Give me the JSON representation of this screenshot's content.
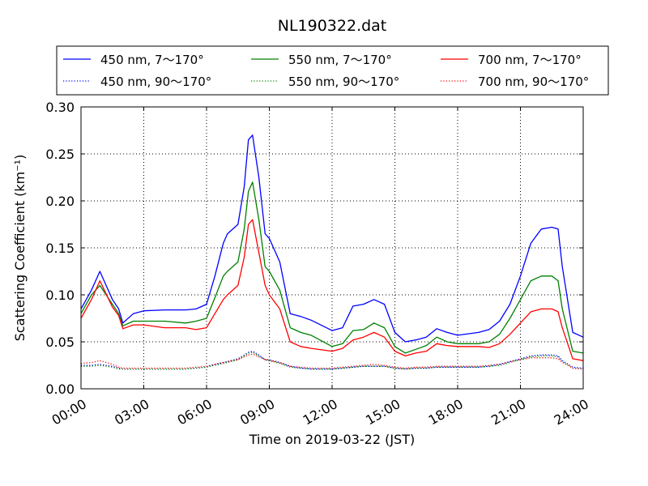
{
  "chart_data": {
    "type": "line",
    "title": "NL190322.dat",
    "xlabel": "Time on 2019-03-22 (JST)",
    "ylabel": "Scattering Coefficient (km⁻¹)",
    "xlim": [
      0,
      24
    ],
    "ylim": [
      0,
      0.3
    ],
    "grid": true,
    "legend_position": "top",
    "x_ticks": [
      0,
      3,
      6,
      9,
      12,
      15,
      18,
      21,
      24
    ],
    "x_tick_labels": [
      "00:00",
      "03:00",
      "06:00",
      "09:00",
      "12:00",
      "15:00",
      "18:00",
      "21:00",
      "24:00"
    ],
    "y_ticks": [
      0,
      0.05,
      0.1,
      0.15,
      0.2,
      0.25,
      0.3
    ],
    "y_tick_labels": [
      "0.00",
      "0.05",
      "0.10",
      "0.15",
      "0.20",
      "0.25",
      "0.30"
    ],
    "x": [
      0,
      0.5,
      0.9,
      1.5,
      1.8,
      2.0,
      2.5,
      3.0,
      4.0,
      5.0,
      5.5,
      6.0,
      6.4,
      6.8,
      7.0,
      7.5,
      7.8,
      8.0,
      8.2,
      8.5,
      8.8,
      9.0,
      9.5,
      10.0,
      10.5,
      11.0,
      12.0,
      12.5,
      13.0,
      13.5,
      14.0,
      14.5,
      15.0,
      15.5,
      16.0,
      16.5,
      17.0,
      17.5,
      18.0,
      19.0,
      19.5,
      20.0,
      20.5,
      21.0,
      21.5,
      22.0,
      22.5,
      22.8,
      23.0,
      23.5,
      24.0
    ],
    "series": [
      {
        "name": "450 nm, 7～170°",
        "color": "#0000ff",
        "style": "solid",
        "values": [
          0.085,
          0.105,
          0.125,
          0.095,
          0.085,
          0.07,
          0.08,
          0.083,
          0.084,
          0.084,
          0.085,
          0.09,
          0.12,
          0.155,
          0.165,
          0.175,
          0.215,
          0.265,
          0.27,
          0.225,
          0.165,
          0.16,
          0.135,
          0.08,
          0.077,
          0.073,
          0.062,
          0.065,
          0.088,
          0.09,
          0.095,
          0.09,
          0.06,
          0.05,
          0.052,
          0.055,
          0.064,
          0.06,
          0.057,
          0.06,
          0.063,
          0.072,
          0.09,
          0.12,
          0.155,
          0.17,
          0.172,
          0.17,
          0.13,
          0.06,
          0.055
        ]
      },
      {
        "name": "550 nm, 7～170°",
        "color": "#008000",
        "style": "solid",
        "values": [
          0.08,
          0.1,
          0.11,
          0.09,
          0.08,
          0.067,
          0.072,
          0.072,
          0.072,
          0.07,
          0.072,
          0.075,
          0.097,
          0.12,
          0.125,
          0.135,
          0.17,
          0.21,
          0.22,
          0.18,
          0.13,
          0.125,
          0.105,
          0.065,
          0.06,
          0.057,
          0.045,
          0.048,
          0.062,
          0.063,
          0.07,
          0.065,
          0.045,
          0.038,
          0.042,
          0.046,
          0.055,
          0.05,
          0.048,
          0.048,
          0.05,
          0.058,
          0.075,
          0.095,
          0.115,
          0.12,
          0.12,
          0.115,
          0.085,
          0.04,
          0.038
        ]
      },
      {
        "name": "700 nm, 7～170°",
        "color": "#ff0000",
        "style": "solid",
        "values": [
          0.075,
          0.095,
          0.115,
          0.087,
          0.078,
          0.064,
          0.068,
          0.068,
          0.065,
          0.065,
          0.063,
          0.065,
          0.08,
          0.095,
          0.1,
          0.11,
          0.14,
          0.175,
          0.18,
          0.145,
          0.11,
          0.1,
          0.085,
          0.05,
          0.045,
          0.043,
          0.04,
          0.043,
          0.052,
          0.055,
          0.06,
          0.055,
          0.04,
          0.035,
          0.038,
          0.04,
          0.048,
          0.046,
          0.045,
          0.045,
          0.044,
          0.048,
          0.058,
          0.07,
          0.082,
          0.085,
          0.085,
          0.082,
          0.065,
          0.032,
          0.03
        ]
      },
      {
        "name": "450 nm, 90～170°",
        "color": "#0000ff",
        "style": "dotted",
        "values": [
          0.025,
          0.025,
          0.026,
          0.024,
          0.022,
          0.021,
          0.021,
          0.021,
          0.021,
          0.021,
          0.022,
          0.023,
          0.026,
          0.028,
          0.029,
          0.032,
          0.036,
          0.039,
          0.04,
          0.036,
          0.031,
          0.031,
          0.028,
          0.024,
          0.022,
          0.021,
          0.021,
          0.022,
          0.023,
          0.024,
          0.024,
          0.024,
          0.022,
          0.021,
          0.022,
          0.022,
          0.023,
          0.023,
          0.023,
          0.023,
          0.024,
          0.026,
          0.029,
          0.032,
          0.035,
          0.036,
          0.036,
          0.035,
          0.03,
          0.023,
          0.022
        ]
      },
      {
        "name": "550 nm, 90～170°",
        "color": "#008000",
        "style": "dotted",
        "values": [
          0.024,
          0.024,
          0.025,
          0.023,
          0.021,
          0.021,
          0.021,
          0.021,
          0.021,
          0.021,
          0.022,
          0.023,
          0.025,
          0.027,
          0.028,
          0.031,
          0.035,
          0.038,
          0.039,
          0.035,
          0.031,
          0.03,
          0.027,
          0.023,
          0.022,
          0.021,
          0.021,
          0.022,
          0.023,
          0.024,
          0.024,
          0.024,
          0.022,
          0.021,
          0.022,
          0.022,
          0.023,
          0.023,
          0.023,
          0.023,
          0.024,
          0.025,
          0.028,
          0.031,
          0.034,
          0.035,
          0.035,
          0.034,
          0.029,
          0.022,
          0.021
        ]
      },
      {
        "name": "700 nm, 90～170°",
        "color": "#ff0000",
        "style": "dotted",
        "values": [
          0.027,
          0.028,
          0.03,
          0.026,
          0.023,
          0.022,
          0.022,
          0.022,
          0.022,
          0.022,
          0.023,
          0.024,
          0.026,
          0.028,
          0.029,
          0.031,
          0.034,
          0.036,
          0.037,
          0.034,
          0.031,
          0.03,
          0.028,
          0.024,
          0.023,
          0.022,
          0.022,
          0.023,
          0.024,
          0.025,
          0.026,
          0.025,
          0.023,
          0.022,
          0.023,
          0.023,
          0.024,
          0.024,
          0.024,
          0.024,
          0.025,
          0.026,
          0.029,
          0.031,
          0.033,
          0.033,
          0.033,
          0.032,
          0.028,
          0.022,
          0.021
        ]
      }
    ]
  }
}
